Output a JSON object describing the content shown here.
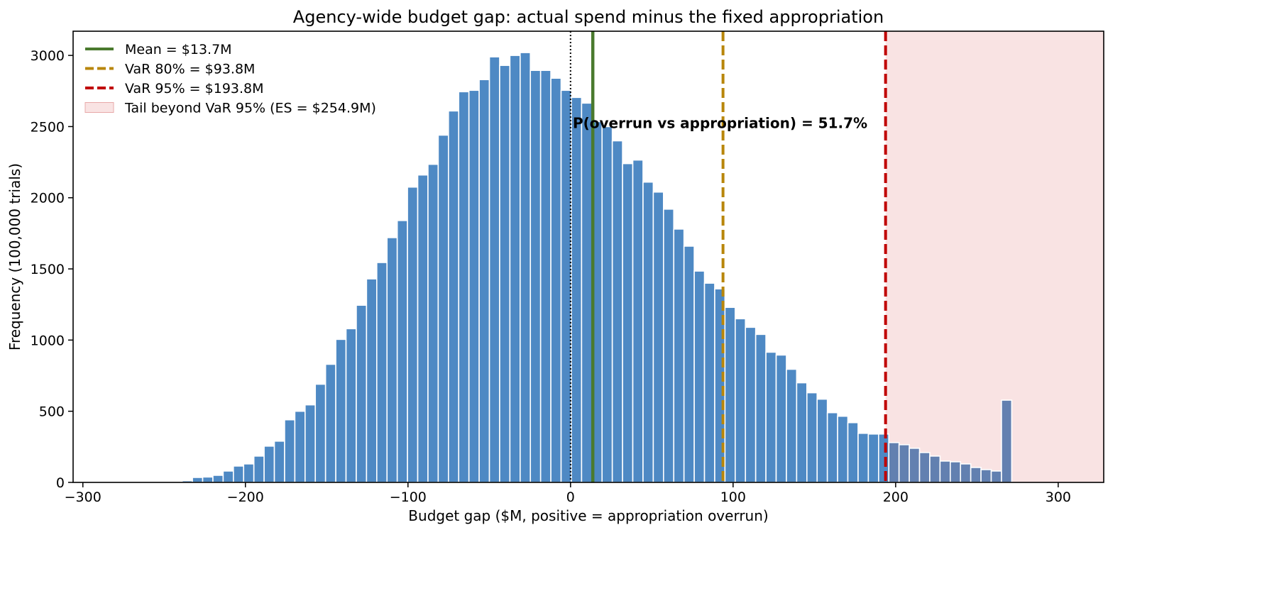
{
  "chart_data": {
    "type": "bar",
    "title": "Agency-wide budget gap: actual spend minus the fixed appropriation",
    "xlabel": "Budget gap  ($M, positive = appropriation overrun)",
    "ylabel": "Frequency  (100,000 trials)",
    "xlim": [
      -306,
      328
    ],
    "ylim": [
      0,
      3170
    ],
    "x_ticks": [
      -300,
      -200,
      -100,
      0,
      100,
      200,
      300
    ],
    "x_tick_labels": [
      "−300",
      "−200",
      "−100",
      "0",
      "100",
      "200",
      "300"
    ],
    "y_ticks": [
      0,
      500,
      1000,
      1500,
      2000,
      2500,
      3000
    ],
    "y_tick_labels": [
      "0",
      "500",
      "1000",
      "1500",
      "2000",
      "2500",
      "3000"
    ],
    "grid": false,
    "legend_position": "upper-left",
    "bin_width": 6.3,
    "bin_start": -301.9,
    "frequencies": [
      1,
      1,
      1,
      1,
      2,
      3,
      4,
      6,
      6,
      8,
      12,
      35,
      38,
      50,
      80,
      115,
      130,
      185,
      255,
      290,
      440,
      500,
      545,
      690,
      830,
      1005,
      1080,
      1245,
      1430,
      1545,
      1720,
      1840,
      2075,
      2160,
      2235,
      2440,
      2610,
      2745,
      2755,
      2830,
      2990,
      2930,
      3000,
      3020,
      2895,
      2895,
      2840,
      2755,
      2705,
      2665,
      2535,
      2500,
      2400,
      2240,
      2265,
      2110,
      2040,
      1920,
      1780,
      1660,
      1485,
      1400,
      1360,
      1230,
      1150,
      1090,
      1040,
      915,
      895,
      795,
      700,
      630,
      585,
      490,
      465,
      420,
      345,
      340,
      340,
      280,
      265,
      240,
      210,
      185,
      150,
      145,
      130,
      105,
      90,
      80,
      578
    ],
    "reference_lines": {
      "zero": {
        "x": 0,
        "style": "dotted",
        "color": "#000000"
      },
      "mean": {
        "x": 13.7,
        "label": "Mean = $13.7M",
        "color": "#4a7a2e",
        "style": "solid"
      },
      "var80": {
        "x": 93.8,
        "label": "VaR 80% = $93.8M",
        "color": "#b8860b",
        "style": "dashed"
      },
      "var95": {
        "x": 193.8,
        "label": "VaR 95% = $193.8M",
        "color": "#c00000",
        "style": "dashed"
      }
    },
    "tail_region": {
      "from": 193.8,
      "label": "Tail beyond VaR 95% (ES = $254.9M)",
      "color": "#f5d0d0"
    },
    "annotation": {
      "text": "P(overrun vs appropriation) = 51.7%",
      "x": 92,
      "y": 2490
    },
    "colors": {
      "bar": "#4e89c4",
      "bar_edge": "#ffffff",
      "tail_bar": "#6280b0"
    }
  }
}
